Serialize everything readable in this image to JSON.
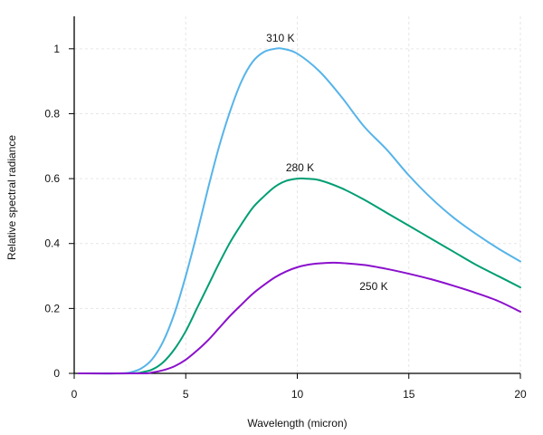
{
  "chart_data": {
    "type": "line",
    "title": "",
    "xlabel": "Wavelength (micron)",
    "ylabel": "Relative spectral radiance",
    "xlim": [
      0,
      20
    ],
    "ylim": [
      0,
      1.1
    ],
    "x_ticks": [
      0,
      5,
      10,
      15,
      20
    ],
    "y_ticks": [
      0,
      0.2,
      0.4,
      0.6,
      0.8,
      1
    ],
    "x_tick_labels": [
      "0",
      "5",
      "10",
      "15",
      "20"
    ],
    "y_tick_labels": [
      "0",
      "0.2",
      "0.4",
      "0.6",
      "0.8",
      "1"
    ],
    "grid": true,
    "legend": "none",
    "series": [
      {
        "name": "310 K",
        "label": "310 K",
        "color": "#56B4E9",
        "x": [
          0.2,
          2,
          2.5,
          3,
          3.5,
          4,
          4.5,
          5,
          5.5,
          6,
          6.5,
          7,
          7.5,
          8,
          8.5,
          9,
          9.35,
          10,
          11,
          12,
          13,
          14,
          15,
          16,
          17,
          18,
          19,
          20
        ],
        "y": [
          0,
          0,
          0.003,
          0.015,
          0.044,
          0.1,
          0.186,
          0.3,
          0.43,
          0.57,
          0.7,
          0.81,
          0.9,
          0.96,
          0.99,
          1.0,
          1.0,
          0.985,
          0.93,
          0.85,
          0.76,
          0.69,
          0.61,
          0.54,
          0.48,
          0.43,
          0.385,
          0.345
        ]
      },
      {
        "name": "280 K",
        "label": "280 K",
        "color": "#009E73",
        "x": [
          0.2,
          2.5,
          3,
          3.5,
          4,
          4.5,
          5,
          5.5,
          6,
          6.5,
          7,
          7.5,
          8,
          8.5,
          9,
          9.5,
          10,
          10.35,
          11,
          12,
          13,
          14,
          15,
          16,
          17,
          18,
          19,
          20
        ],
        "y": [
          0,
          0,
          0.003,
          0.012,
          0.035,
          0.075,
          0.13,
          0.2,
          0.27,
          0.34,
          0.405,
          0.46,
          0.51,
          0.545,
          0.575,
          0.593,
          0.6,
          0.6,
          0.595,
          0.57,
          0.535,
          0.495,
          0.455,
          0.415,
          0.375,
          0.335,
          0.3,
          0.265
        ]
      },
      {
        "name": "250 K",
        "label": "250 K",
        "color": "#8B10CC",
        "x": [
          0.2,
          3,
          3.5,
          4,
          4.5,
          5,
          5.5,
          6,
          6.5,
          7,
          7.5,
          8,
          8.5,
          9,
          9.5,
          10,
          10.5,
          11,
          11.6,
          12,
          13,
          14,
          15,
          16,
          17,
          18,
          19,
          20
        ],
        "y": [
          0,
          0,
          0.003,
          0.01,
          0.022,
          0.042,
          0.07,
          0.102,
          0.14,
          0.178,
          0.212,
          0.245,
          0.272,
          0.296,
          0.314,
          0.327,
          0.335,
          0.339,
          0.341,
          0.34,
          0.334,
          0.322,
          0.307,
          0.29,
          0.27,
          0.248,
          0.223,
          0.19
        ]
      }
    ]
  }
}
